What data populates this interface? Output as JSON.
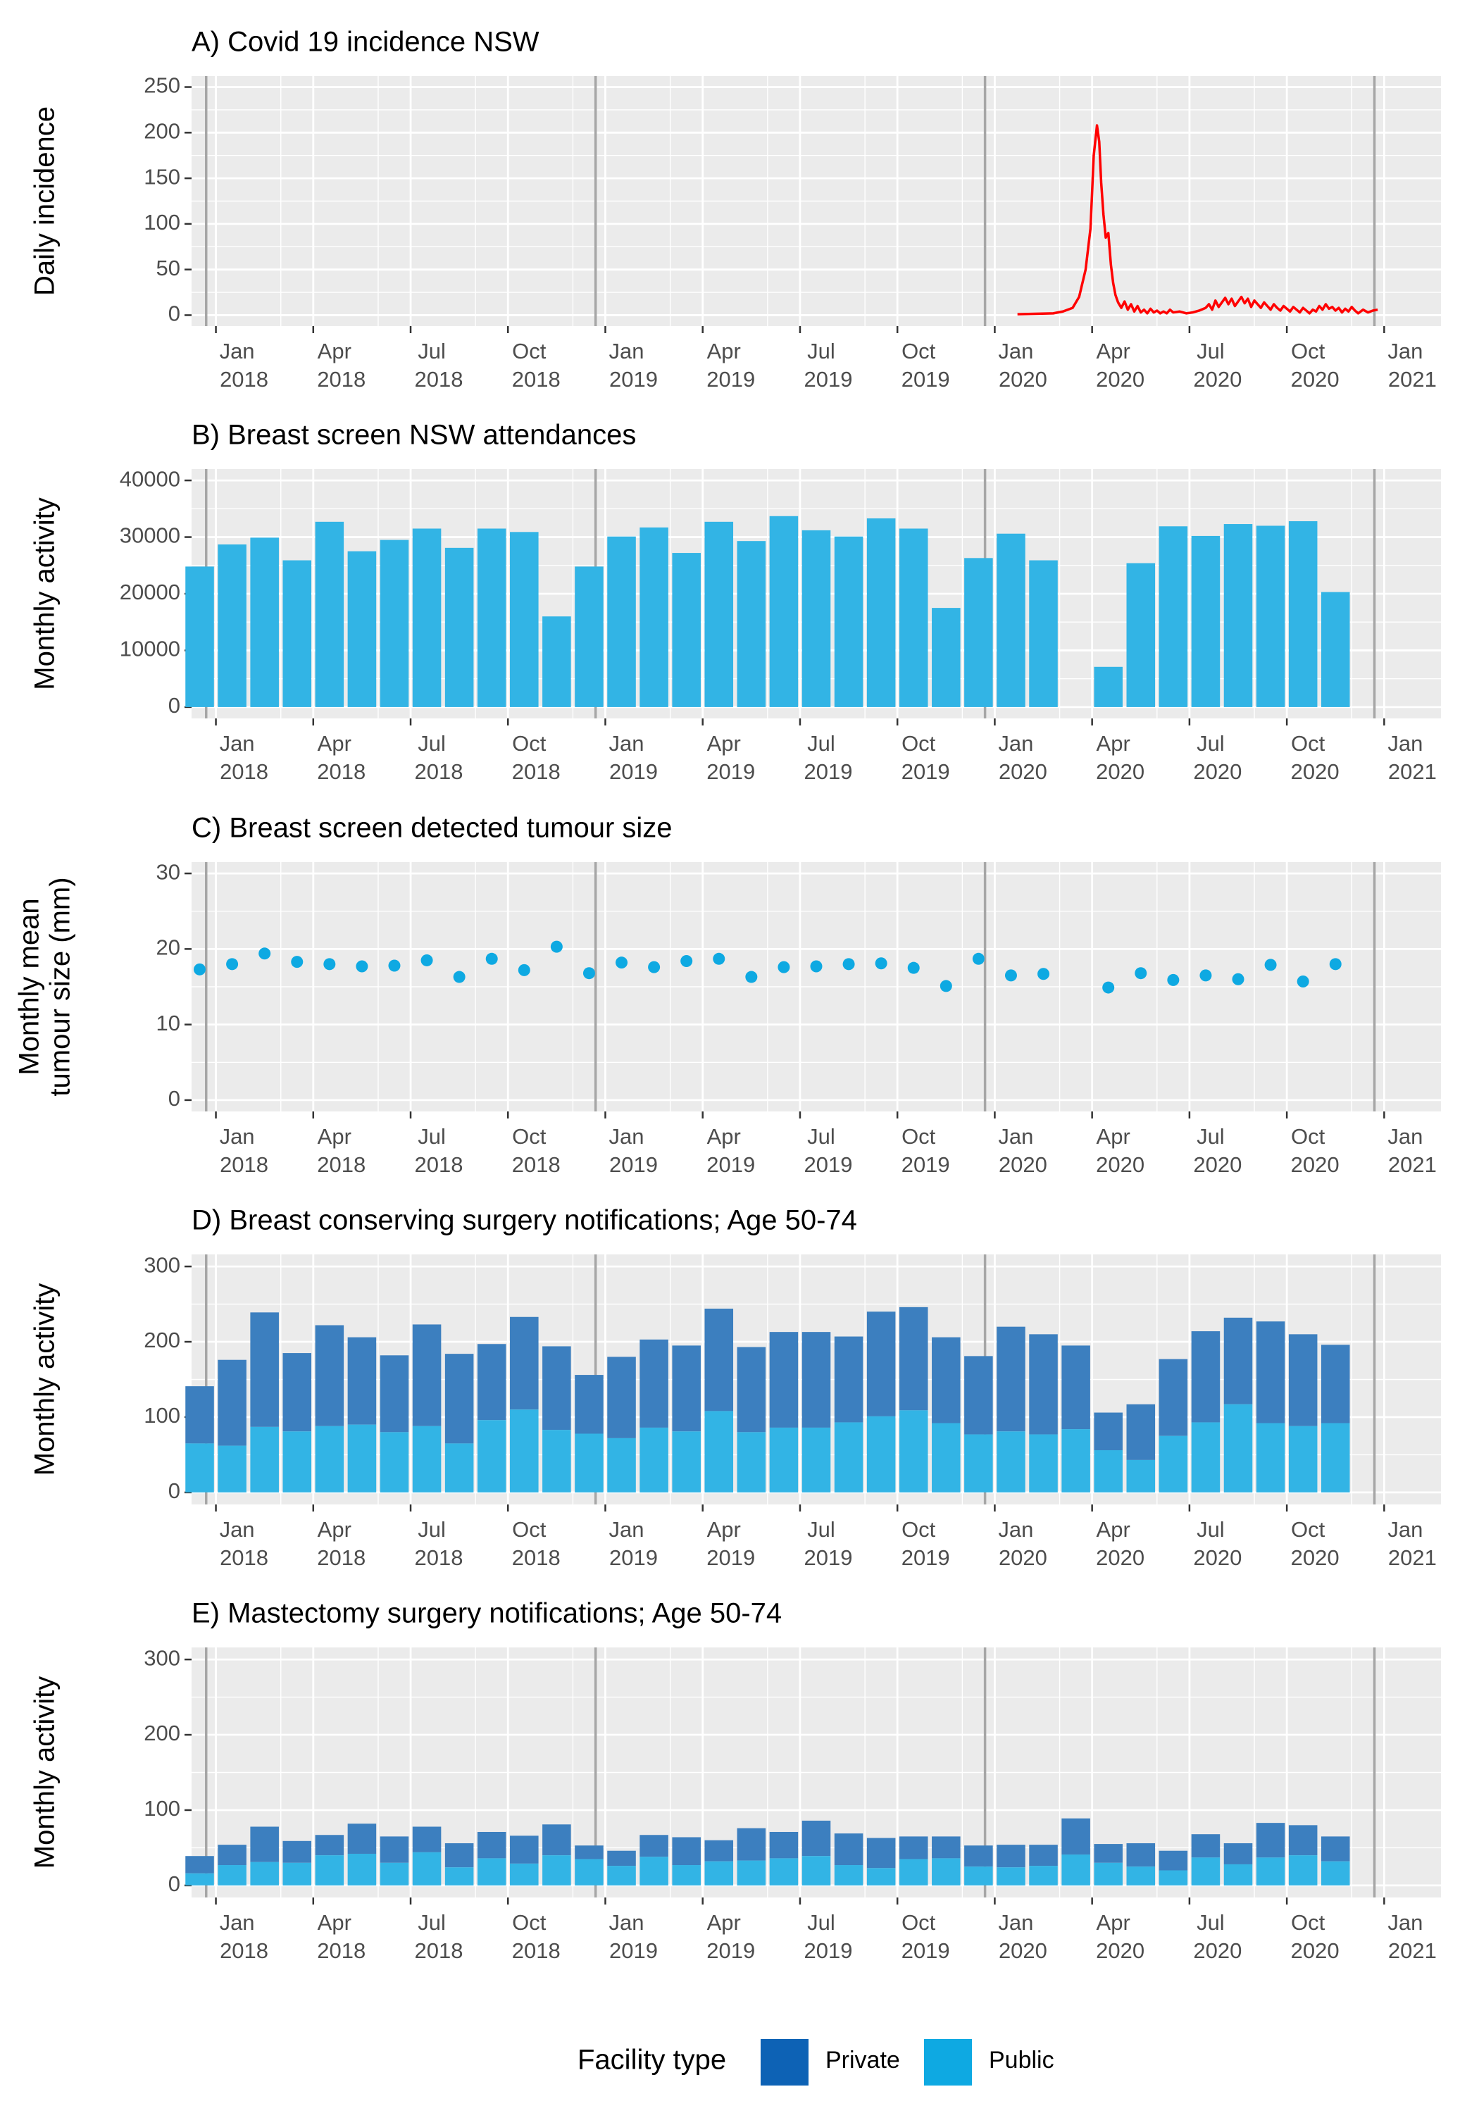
{
  "legend": {
    "title": "Facility type",
    "items": [
      {
        "label": "Private",
        "color": "#0d62b5"
      },
      {
        "label": "Public",
        "color": "#0ea9e2"
      }
    ]
  },
  "months": [
    "2017-12",
    "2018-01",
    "2018-02",
    "2018-03",
    "2018-04",
    "2018-05",
    "2018-06",
    "2018-07",
    "2018-08",
    "2018-09",
    "2018-10",
    "2018-11",
    "2018-12",
    "2019-01",
    "2019-02",
    "2019-03",
    "2019-04",
    "2019-05",
    "2019-06",
    "2019-07",
    "2019-08",
    "2019-09",
    "2019-10",
    "2019-11",
    "2019-12",
    "2020-01",
    "2020-02",
    "2020-03",
    "2020-04",
    "2020-05",
    "2020-06",
    "2020-07",
    "2020-08",
    "2020-09",
    "2020-10",
    "2020-11"
  ],
  "x_ticks": [
    {
      "month_index": 1,
      "line1": "Jan",
      "line2": "2018"
    },
    {
      "month_index": 4,
      "line1": "Apr",
      "line2": "2018"
    },
    {
      "month_index": 7,
      "line1": "Jul",
      "line2": "2018"
    },
    {
      "month_index": 10,
      "line1": "Oct",
      "line2": "2018"
    },
    {
      "month_index": 13,
      "line1": "Jan",
      "line2": "2019"
    },
    {
      "month_index": 16,
      "line1": "Apr",
      "line2": "2019"
    },
    {
      "month_index": 19,
      "line1": "Jul",
      "line2": "2019"
    },
    {
      "month_index": 22,
      "line1": "Oct",
      "line2": "2019"
    },
    {
      "month_index": 25,
      "line1": "Jan",
      "line2": "2020"
    },
    {
      "month_index": 28,
      "line1": "Apr",
      "line2": "2020"
    },
    {
      "month_index": 31,
      "line1": "Jul",
      "line2": "2020"
    },
    {
      "month_index": 34,
      "line1": "Oct",
      "line2": "2020"
    },
    {
      "month_index": 37,
      "line1": "Jan",
      "line2": "2021"
    }
  ],
  "year_boundaries": [
    0,
    12,
    24,
    36
  ],
  "chart_data": [
    {
      "id": "A",
      "type": "line",
      "title": "A) Covid 19 incidence NSW",
      "ylabel": [
        "Daily incidence"
      ],
      "ylim": [
        -12,
        262
      ],
      "yticks": [
        0,
        50,
        100,
        150,
        200,
        250
      ],
      "color": "#ff0000",
      "series": [
        {
          "name": "Daily incidence",
          "x_month": [
            25.2,
            26.3,
            26.6,
            26.9,
            27.1,
            27.3,
            27.45,
            27.55,
            27.65,
            27.72,
            27.78,
            27.85,
            27.92,
            28.0,
            28.08,
            28.15,
            28.22,
            28.3,
            28.4,
            28.5,
            28.6,
            28.7,
            28.8,
            28.9,
            29.0,
            29.1,
            29.2,
            29.3,
            29.4,
            29.5,
            29.6,
            29.7,
            29.8,
            29.9,
            30.0,
            30.2,
            30.4,
            30.6,
            30.8,
            31.0,
            31.1,
            31.2,
            31.3,
            31.4,
            31.5,
            31.6,
            31.7,
            31.8,
            31.9,
            32.0,
            32.1,
            32.2,
            32.3,
            32.4,
            32.5,
            32.6,
            32.7,
            32.8,
            32.9,
            33.0,
            33.1,
            33.2,
            33.3,
            33.4,
            33.5,
            33.6,
            33.7,
            33.8,
            33.9,
            34.0,
            34.1,
            34.2,
            34.3,
            34.4,
            34.5,
            34.6,
            34.7,
            34.8,
            34.9,
            35.0,
            35.1,
            35.2,
            35.3,
            35.4,
            35.5,
            35.6,
            35.7,
            35.85,
            36.0,
            36.15,
            36.3
          ],
          "values": [
            1,
            2,
            4,
            8,
            20,
            50,
            95,
            175,
            208,
            190,
            145,
            110,
            85,
            90,
            55,
            35,
            22,
            14,
            8,
            15,
            6,
            12,
            4,
            10,
            3,
            6,
            2,
            7,
            3,
            5,
            2,
            4,
            2,
            6,
            3,
            4,
            2,
            3,
            5,
            8,
            12,
            6,
            16,
            9,
            14,
            19,
            12,
            18,
            10,
            15,
            20,
            13,
            18,
            9,
            16,
            12,
            8,
            14,
            10,
            6,
            12,
            8,
            5,
            10,
            7,
            4,
            9,
            6,
            3,
            8,
            5,
            2,
            6,
            4,
            10,
            6,
            12,
            7,
            9,
            5,
            8,
            3,
            7,
            4,
            9,
            5,
            2,
            6,
            3,
            5,
            6
          ]
        }
      ]
    },
    {
      "id": "B",
      "type": "bar",
      "title": "B) Breast screen NSW attendances",
      "ylabel": [
        "Monthly activity"
      ],
      "ylim": [
        -2000,
        42000
      ],
      "yticks": [
        0,
        10000,
        20000,
        30000,
        40000
      ],
      "color": "#32b4e5",
      "values": [
        24800,
        28700,
        29900,
        25900,
        32700,
        27500,
        29500,
        31500,
        28100,
        31500,
        30900,
        16000,
        24800,
        30100,
        31700,
        27200,
        32700,
        29300,
        33700,
        31200,
        30100,
        33300,
        31500,
        17500,
        26300,
        30600,
        25900,
        null,
        7100,
        25400,
        31900,
        30200,
        32300,
        32000,
        32800,
        20300
      ]
    },
    {
      "id": "C",
      "type": "scatter",
      "title": "C) Breast screen detected tumour size",
      "ylabel": [
        "Monthly mean",
        "tumour size (mm)"
      ],
      "ylim": [
        -1.5,
        31.5
      ],
      "yticks": [
        0,
        10,
        20,
        30
      ],
      "color": "#0ea9e2",
      "values": [
        17.3,
        18.0,
        19.4,
        18.3,
        18.0,
        17.7,
        17.8,
        18.5,
        16.3,
        18.7,
        17.2,
        20.3,
        16.8,
        18.2,
        17.6,
        18.4,
        18.7,
        16.3,
        17.6,
        17.7,
        18.0,
        18.1,
        17.5,
        15.1,
        18.7,
        16.5,
        16.7,
        null,
        14.9,
        16.8,
        15.9,
        16.5,
        16.0,
        17.9,
        15.7,
        18.0
      ]
    },
    {
      "id": "D",
      "type": "stacked-bar",
      "title": "D) Breast conserving surgery notifications; Age 50-74",
      "ylabel": [
        "Monthly activity"
      ],
      "ylim": [
        -16,
        316
      ],
      "yticks": [
        0,
        100,
        200,
        300
      ],
      "series": [
        {
          "name": "Public",
          "color": "#32b4e5",
          "values": [
            65,
            62,
            87,
            81,
            88,
            90,
            80,
            88,
            65,
            96,
            110,
            83,
            78,
            72,
            86,
            81,
            108,
            80,
            86,
            86,
            93,
            101,
            109,
            92,
            77,
            81,
            77,
            84,
            56,
            43,
            75,
            93,
            117,
            92,
            88,
            92
          ]
        },
        {
          "name": "Private",
          "color": "#3c7fbf",
          "values": [
            76,
            114,
            152,
            104,
            134,
            116,
            102,
            135,
            119,
            101,
            123,
            111,
            78,
            108,
            117,
            114,
            136,
            113,
            127,
            127,
            114,
            139,
            137,
            114,
            104,
            139,
            133,
            111,
            50,
            74,
            102,
            121,
            115,
            135,
            122,
            104
          ]
        }
      ]
    },
    {
      "id": "E",
      "type": "stacked-bar",
      "title": "E) Mastectomy surgery notifications; Age 50-74",
      "ylabel": [
        "Monthly activity"
      ],
      "ylim": [
        -16,
        316
      ],
      "yticks": [
        0,
        100,
        200,
        300
      ],
      "series": [
        {
          "name": "Public",
          "color": "#32b4e5",
          "values": [
            16,
            27,
            31,
            30,
            40,
            42,
            30,
            44,
            24,
            36,
            29,
            40,
            35,
            26,
            38,
            27,
            32,
            33,
            36,
            39,
            27,
            23,
            35,
            36,
            25,
            24,
            26,
            41,
            30,
            25,
            20,
            37,
            28,
            37,
            40,
            32
          ]
        },
        {
          "name": "Private",
          "color": "#3c7fbf",
          "values": [
            23,
            27,
            47,
            29,
            27,
            40,
            35,
            34,
            32,
            35,
            37,
            41,
            18,
            20,
            29,
            37,
            28,
            43,
            35,
            47,
            42,
            40,
            30,
            29,
            28,
            30,
            28,
            48,
            25,
            31,
            26,
            31,
            28,
            46,
            40,
            33
          ]
        }
      ]
    }
  ]
}
